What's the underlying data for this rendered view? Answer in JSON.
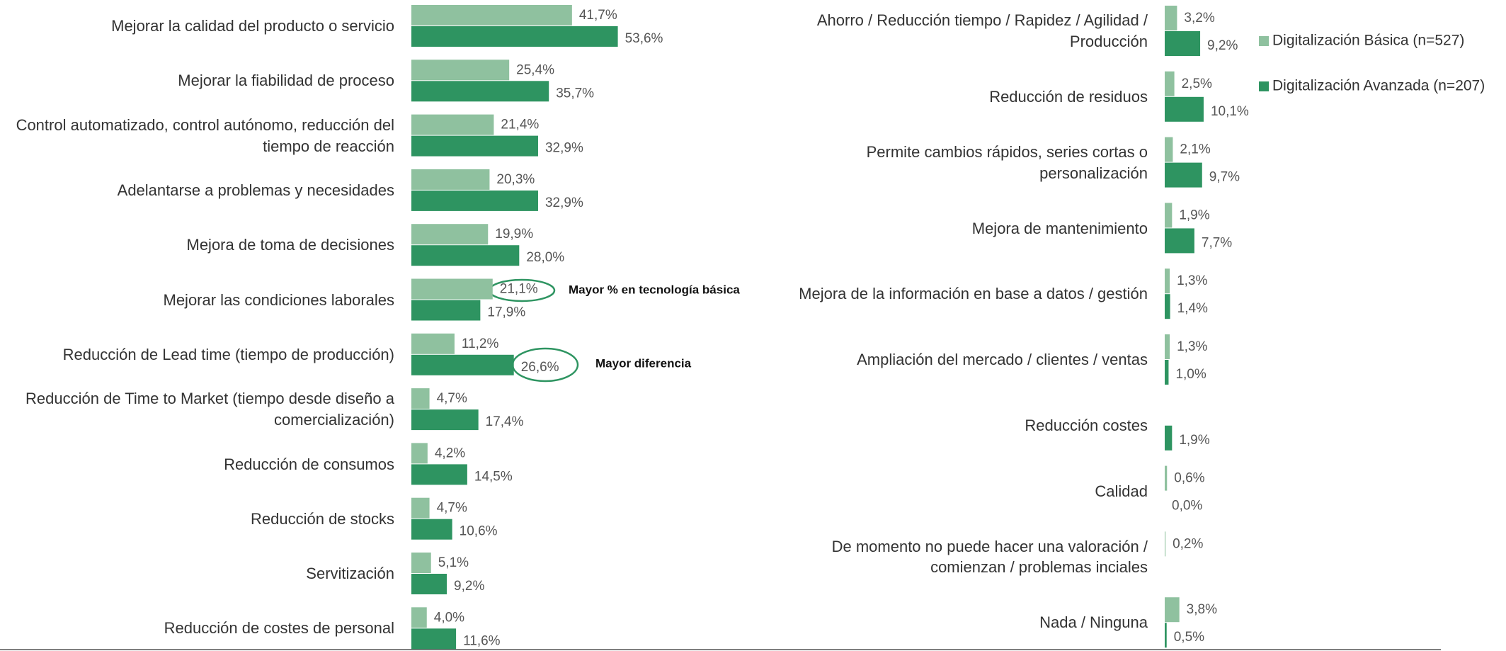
{
  "chart_data": [
    {
      "type": "hbar",
      "categories": [
        "Mejorar la calidad del producto o servicio",
        "Mejorar la fiabilidad de proceso",
        "Control automatizado, control autónomo, reducción del tiempo de reacción",
        "Adelantarse a problemas y necesidades",
        "Mejora de toma de decisiones",
        "Mejorar las condiciones laborales",
        "Reducción de Lead time (tiempo de producción)",
        "Reducción de Time to Market (tiempo desde diseño a comercialización)",
        "Reducción de consumos",
        "Reducción de stocks",
        "Servitización",
        "Reducción de costes de personal"
      ],
      "series": [
        {
          "color": "#8fc19f",
          "values": [
            41.7,
            25.4,
            21.4,
            20.3,
            19.9,
            21.1,
            11.2,
            4.7,
            4.2,
            4.7,
            5.1,
            4.0
          ],
          "value_labels": [
            "41,7%",
            "25,4%",
            "21,4%",
            "20,3%",
            "19,9%",
            "21,1%",
            "11,2%",
            "4,7%",
            "4,2%",
            "4,7%",
            "5,1%",
            "4,0%"
          ]
        },
        {
          "color": "#2e9461",
          "values": [
            53.6,
            35.7,
            32.9,
            32.9,
            28.0,
            17.9,
            26.6,
            17.4,
            14.5,
            10.6,
            9.2,
            11.6
          ],
          "value_labels": [
            "53,6%",
            "35,7%",
            "32,9%",
            "32,9%",
            "28,0%",
            "17,9%",
            "26,6%",
            "17,4%",
            "14,5%",
            "10,6%",
            "9,2%",
            "11,6%"
          ]
        }
      ],
      "annotations": [
        "Mayor % en tecnología básica",
        "Mayor diferencia"
      ]
    },
    {
      "type": "hbar",
      "categories": [
        "Ahorro / Reducción tiempo / Rapidez / Agilidad / Producción",
        "Reducción de residuos",
        "Permite cambios rápidos, series cortas o personalización",
        "Mejora de mantenimiento",
        "Mejora de la información en base a datos / gestión",
        "Ampliación del mercado / clientes / ventas",
        "Reducción costes",
        "Calidad",
        "De momento no puede hacer una valoración / comienzan / problemas inciales",
        "Nada / Ninguna"
      ],
      "series": [
        {
          "name": "Digitalización Básica (n=527)",
          "color": "#8fc19f",
          "values": [
            3.2,
            2.5,
            2.1,
            1.9,
            1.3,
            1.3,
            null,
            0.6,
            0.2,
            3.8
          ],
          "value_labels": [
            "3,2%",
            "2,5%",
            "2,1%",
            "1,9%",
            "1,3%",
            "1,3%",
            null,
            "0,6%",
            "0,2%",
            "3,8%"
          ]
        },
        {
          "name": "Digitalización Avanzada (n=207)",
          "color": "#2e9461",
          "values": [
            9.2,
            10.1,
            9.7,
            7.7,
            1.4,
            1.0,
            1.9,
            0.0,
            null,
            0.5
          ],
          "value_labels": [
            "9,2%",
            "10,1%",
            "9,7%",
            "7,7%",
            "1,4%",
            "1,0%",
            "1,9%",
            "0,0%",
            null,
            "0,5%"
          ]
        }
      ],
      "legend": "top-right"
    }
  ]
}
